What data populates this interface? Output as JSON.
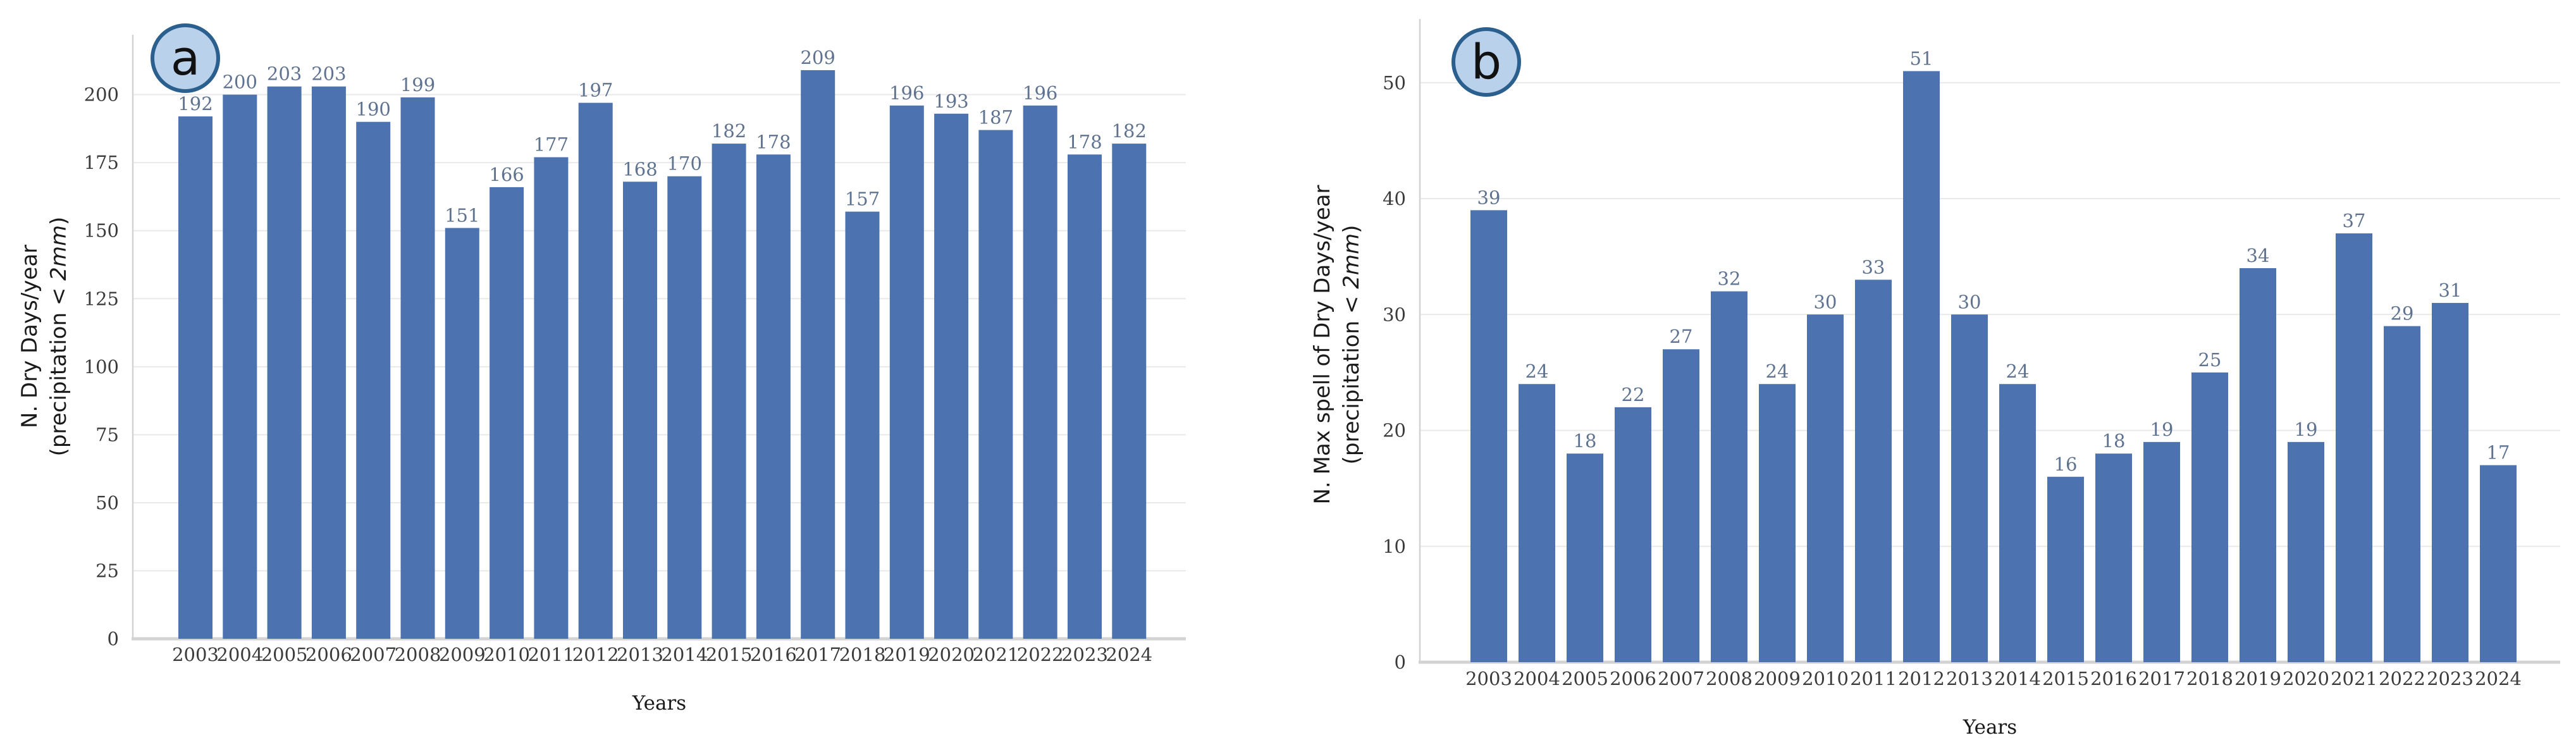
{
  "figure": {
    "background": "#ffffff",
    "bar_color": "#4C72B0",
    "value_label_color": "#5F7390",
    "grid_color": "#E9E9E9",
    "spine_color": "#D3D3D3",
    "tick_color": "#3B3B3B",
    "axis_label_color": "#1A1A1A",
    "badge_fill": "#BAD1EB",
    "badge_stroke": "#2B5F8E",
    "badge_text_color": "#111111"
  },
  "chart_data": [
    {
      "id": "a",
      "type": "bar",
      "badge": "a",
      "xlabel": "Years",
      "ylabel_line1": "N. Dry Days/year",
      "ylabel_line2_parts": [
        "(precipitation ",
        "< ",
        "2mm",
        ")"
      ],
      "categories": [
        "2003",
        "2004",
        "2005",
        "2006",
        "2007",
        "2008",
        "2009",
        "2010",
        "2011",
        "2012",
        "2013",
        "2014",
        "2015",
        "2016",
        "2017",
        "2018",
        "2019",
        "2020",
        "2021",
        "2022",
        "2023",
        "2024"
      ],
      "values": [
        192,
        200,
        203,
        203,
        190,
        199,
        151,
        166,
        177,
        197,
        168,
        170,
        182,
        178,
        209,
        157,
        196,
        193,
        187,
        196,
        178,
        182
      ],
      "yticks": [
        0,
        25,
        50,
        75,
        100,
        125,
        150,
        175,
        200
      ],
      "ylim": [
        0,
        222
      ],
      "grid": true,
      "legend": "none",
      "bar_value_labels": true
    },
    {
      "id": "b",
      "type": "bar",
      "badge": "b",
      "xlabel": "Years",
      "ylabel_line1": "N. Max spell of Dry Days/year",
      "ylabel_line2_parts": [
        "(precipitation ",
        "< ",
        "2mm",
        ")"
      ],
      "categories": [
        "2003",
        "2004",
        "2005",
        "2006",
        "2007",
        "2008",
        "2009",
        "2010",
        "2011",
        "2012",
        "2013",
        "2014",
        "2015",
        "2016",
        "2017",
        "2018",
        "2019",
        "2020",
        "2021",
        "2022",
        "2023",
        "2024"
      ],
      "values": [
        39,
        24,
        18,
        22,
        27,
        32,
        24,
        30,
        33,
        51,
        30,
        24,
        16,
        18,
        19,
        25,
        34,
        19,
        37,
        29,
        31,
        17
      ],
      "yticks": [
        0,
        10,
        20,
        30,
        40,
        50
      ],
      "ylim": [
        0,
        55.5
      ],
      "grid": true,
      "legend": "none",
      "bar_value_labels": true
    }
  ]
}
